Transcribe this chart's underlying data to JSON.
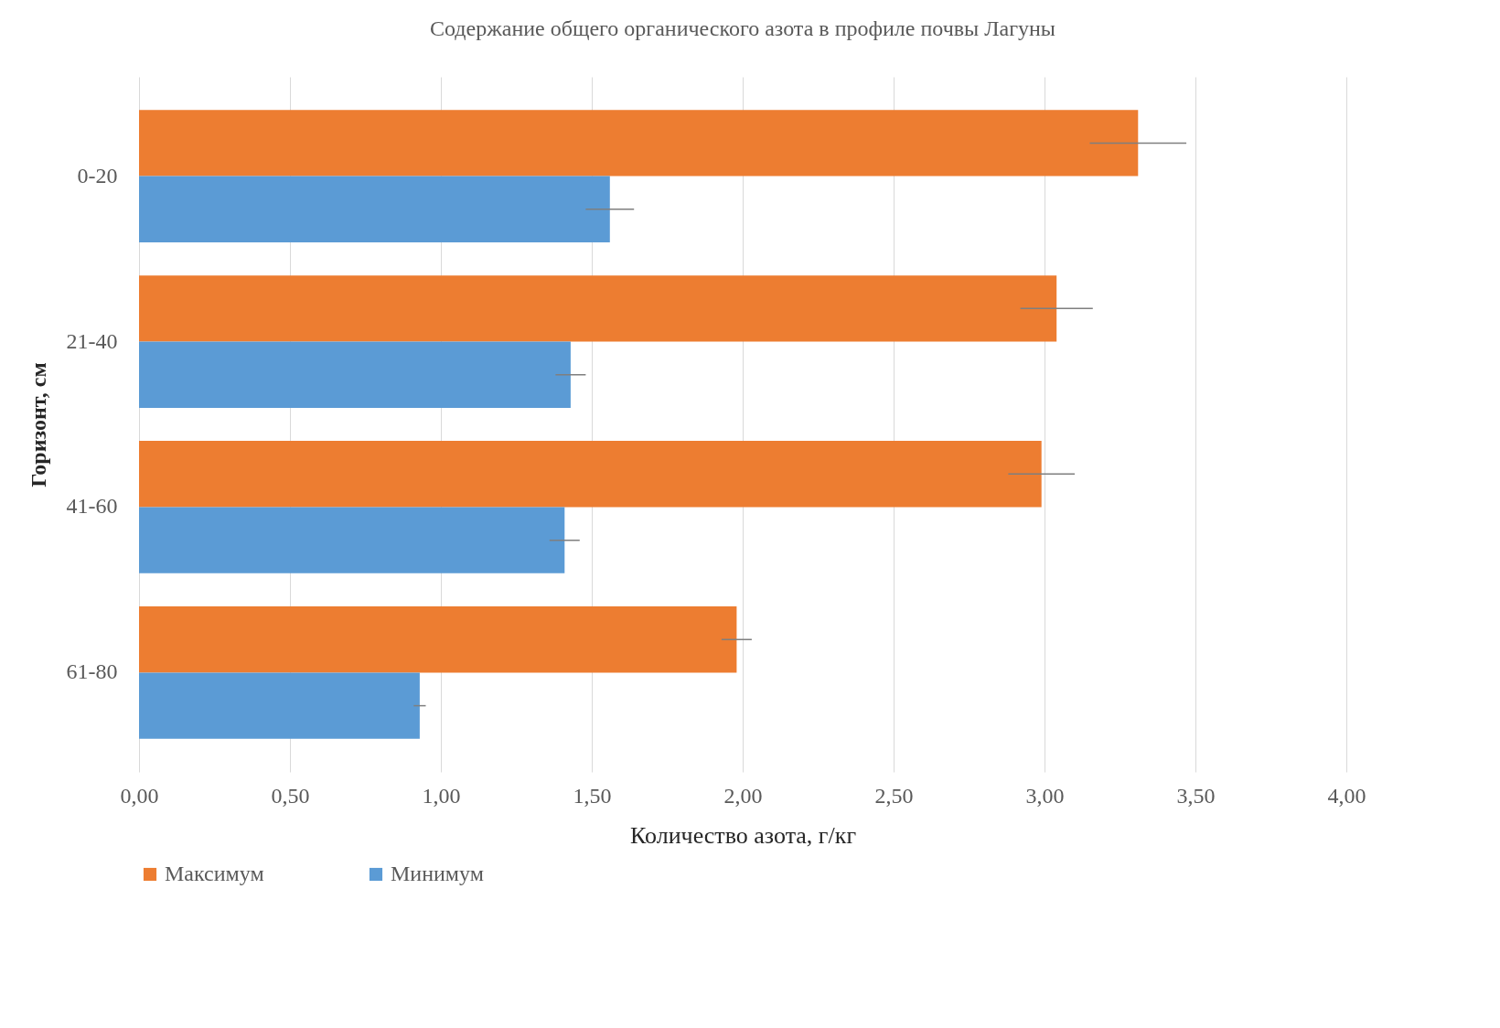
{
  "chart_data": {
    "type": "bar",
    "orientation": "horizontal",
    "title": "Содержание общего органического азота в профиле почвы Лагуны",
    "xlabel": "Количество азота, г/кг",
    "ylabel": "Горизонт, см",
    "categories": [
      "0-20",
      "21-40",
      "41-60",
      "61-80"
    ],
    "series": [
      {
        "name": "Максимум",
        "color": "#ed7d31",
        "values": [
          3.31,
          3.04,
          2.99,
          1.98
        ],
        "errors": [
          0.16,
          0.12,
          0.11,
          0.05
        ]
      },
      {
        "name": "Минимум",
        "color": "#5b9bd5",
        "values": [
          1.56,
          1.43,
          1.41,
          0.93
        ],
        "errors": [
          0.08,
          0.05,
          0.05,
          0.02
        ]
      }
    ],
    "xlim": [
      0,
      4
    ],
    "xticks": [
      {
        "value": 0,
        "label": "0,00"
      },
      {
        "value": 0.5,
        "label": "0,50"
      },
      {
        "value": 1,
        "label": "1,00"
      },
      {
        "value": 1.5,
        "label": "1,50"
      },
      {
        "value": 2,
        "label": "2,00"
      },
      {
        "value": 2.5,
        "label": "2,50"
      },
      {
        "value": 3,
        "label": "3,00"
      },
      {
        "value": 3.5,
        "label": "3,50"
      },
      {
        "value": 4,
        "label": "4,00"
      }
    ],
    "grid": "x",
    "legend": "bottom"
  }
}
